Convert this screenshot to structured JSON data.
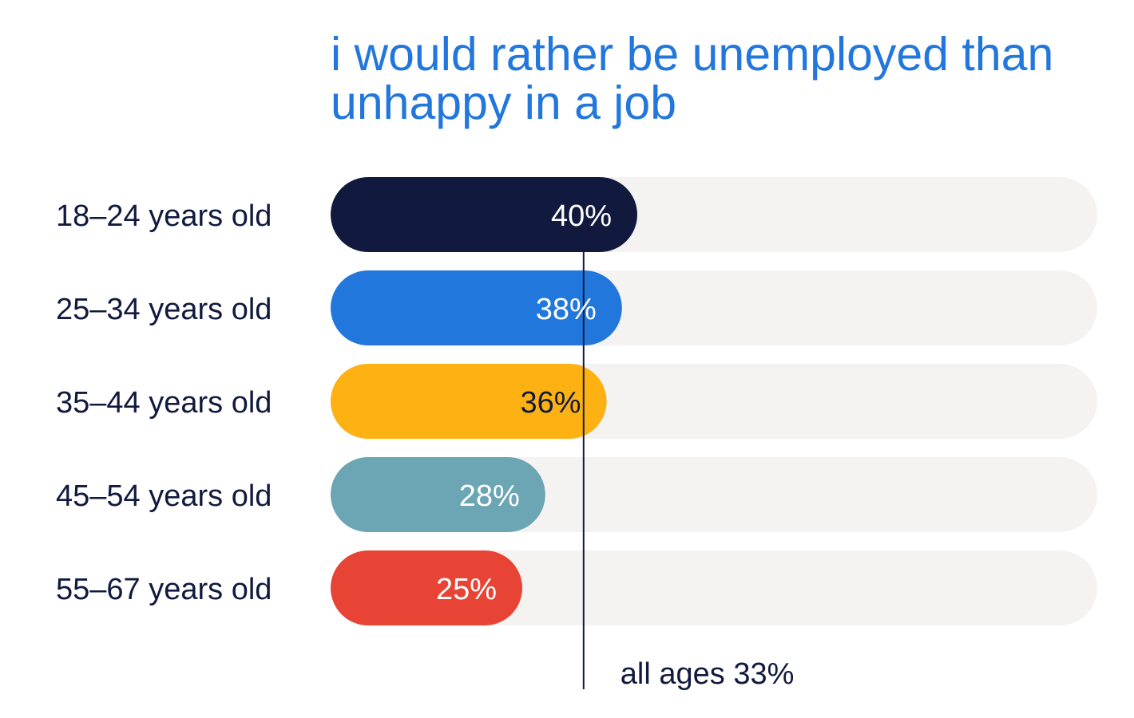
{
  "chart_data": {
    "type": "bar",
    "orientation": "horizontal",
    "title": "i would rather be unemployed than unhappy in a job",
    "categories": [
      "18–24 years old",
      "25–34 years old",
      "35–44 years old",
      "45–54 years old",
      "55–67 years old"
    ],
    "values": [
      40,
      38,
      36,
      28,
      25
    ],
    "value_labels": [
      "40%",
      "38%",
      "36%",
      "28%",
      "25%"
    ],
    "bar_colors": [
      "#111a3e",
      "#2277dd",
      "#fdb113",
      "#6ca5b4",
      "#e84435"
    ],
    "value_label_colors": [
      "#ffffff",
      "#ffffff",
      "#111a3e",
      "#ffffff",
      "#ffffff"
    ],
    "track_color": "#f4f3f1",
    "xlim": [
      0,
      100
    ],
    "reference_line": {
      "value": 33,
      "label": "all ages 33%",
      "color": "#111a3e"
    },
    "grid": false,
    "legend": "none"
  }
}
